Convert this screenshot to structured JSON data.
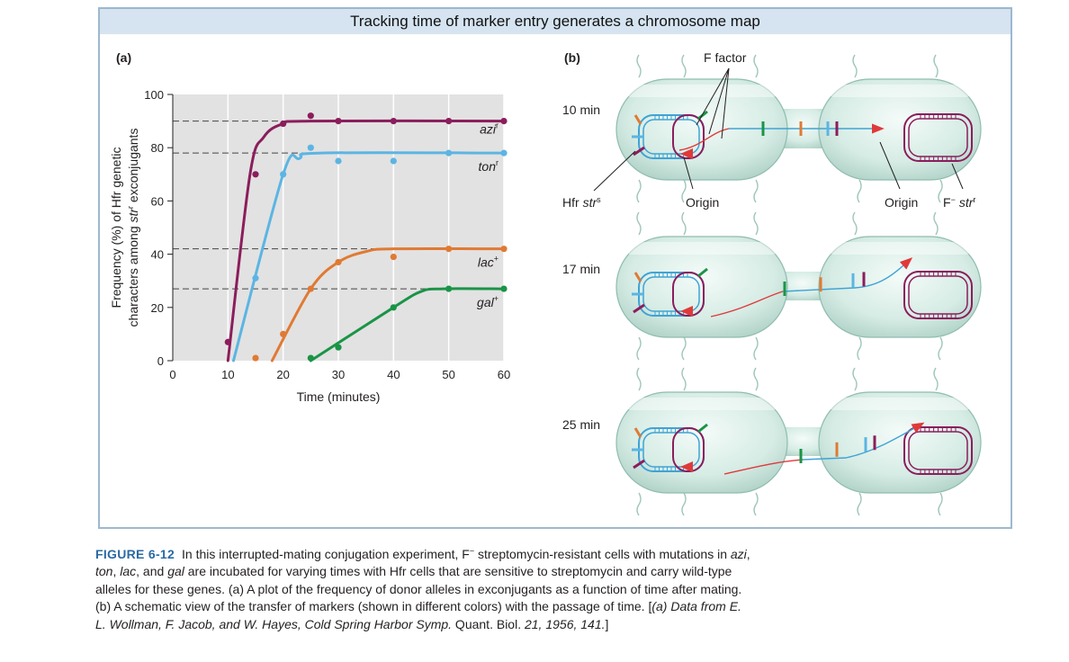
{
  "figure": {
    "title": "Tracking time of marker entry generates a chromosome map",
    "panel_a_label": "(a)",
    "panel_b_label": "(b)"
  },
  "chart_data": {
    "type": "line",
    "xlabel": "Time (minutes)",
    "ylabel_line1": "Frequency (%) of Hfr genetic",
    "ylabel_line2_pre": "characters among ",
    "ylabel_line2_gene": "str",
    "ylabel_line2_sup": "r",
    "ylabel_line2_post": " exconjugants",
    "xlim": [
      0,
      60
    ],
    "ylim": [
      0,
      100
    ],
    "x_ticks": [
      0,
      10,
      20,
      30,
      40,
      50,
      60
    ],
    "y_ticks": [
      0,
      20,
      40,
      60,
      80,
      100
    ],
    "grid": true,
    "series": [
      {
        "name": "azi",
        "sup": "r",
        "color": "#8b1d5c",
        "plateau": 90,
        "points": [
          [
            10,
            7
          ],
          [
            15,
            70
          ],
          [
            20,
            89
          ],
          [
            25,
            92
          ],
          [
            30,
            90
          ],
          [
            40,
            90
          ],
          [
            50,
            90
          ],
          [
            60,
            90
          ]
        ],
        "curve": [
          [
            10,
            0
          ],
          [
            14,
            70
          ],
          [
            16.5,
            84
          ],
          [
            20,
            89
          ],
          [
            25,
            90
          ],
          [
            60,
            90
          ]
        ]
      },
      {
        "name": "ton",
        "sup": "r",
        "color": "#5bb5e3",
        "plateau": 78,
        "points": [
          [
            15,
            31
          ],
          [
            20,
            70
          ],
          [
            25,
            80
          ],
          [
            30,
            75
          ],
          [
            40,
            75
          ],
          [
            50,
            78
          ],
          [
            60,
            78
          ]
        ],
        "curve": [
          [
            11,
            0
          ],
          [
            20,
            70
          ],
          [
            23,
            76
          ],
          [
            27,
            78
          ],
          [
            60,
            78
          ]
        ]
      },
      {
        "name": "lac",
        "sup": "+",
        "color": "#e07a33",
        "plateau": 42,
        "points": [
          [
            15,
            1
          ],
          [
            20,
            10
          ],
          [
            25,
            27
          ],
          [
            30,
            37
          ],
          [
            40,
            39
          ],
          [
            50,
            42
          ],
          [
            60,
            42
          ]
        ],
        "curve": [
          [
            18,
            0
          ],
          [
            25,
            27
          ],
          [
            30,
            37
          ],
          [
            35,
            41
          ],
          [
            40,
            42
          ],
          [
            60,
            42
          ]
        ]
      },
      {
        "name": "gal",
        "sup": "+",
        "color": "#1a9447",
        "plateau": 27,
        "points": [
          [
            25,
            1
          ],
          [
            30,
            5
          ],
          [
            40,
            20
          ],
          [
            50,
            27
          ],
          [
            60,
            27
          ]
        ],
        "curve": [
          [
            25,
            0
          ],
          [
            40,
            20
          ],
          [
            45,
            26
          ],
          [
            49,
            27
          ],
          [
            60,
            27
          ]
        ]
      }
    ]
  },
  "schematic": {
    "f_factor_label": "F factor",
    "hfr_label": "Hfr ",
    "hfr_gene": "str",
    "hfr_sup": "s",
    "origin_label_left": "Origin",
    "origin_label_right": "Origin",
    "fminus_label": "F",
    "fminus_sup": "−",
    "fminus_gene": "str",
    "fminus_gene_sup": "r",
    "time_labels": [
      "10 min",
      "17 min",
      "25 min"
    ]
  },
  "caption": {
    "figure_number": "FIGURE 6-12",
    "text": [
      {
        "t": " In this interrupted-mating conjugation experiment, F"
      },
      {
        "t": "−",
        "sup": true
      },
      {
        "t": " streptomycin-resistant cells with mutations in "
      },
      {
        "t": "azi",
        "i": true
      },
      {
        "t": ", "
      },
      {
        "t": "ton",
        "i": true
      },
      {
        "t": ", "
      },
      {
        "t": "lac",
        "i": true
      },
      {
        "t": ", and "
      },
      {
        "t": "gal",
        "i": true
      },
      {
        "t": " are incubated for varying times with Hfr cells that are sensitive to streptomycin and carry wild-type alleles for these genes. (a) A plot of the frequency of donor alleles in exconjugants as a function of time after mating. (b) A schematic view of the transfer of markers (shown in different colors) with the passage of time. ["
      },
      {
        "t": "(a) Data from E. L. Wollman, F. Jacob, and W. Hayes, Cold Spring Harbor Symp.",
        "i": true
      },
      {
        "t": " Quant. Biol. "
      },
      {
        "t": "21, 1956, 141.",
        "i": true
      },
      {
        "t": "]"
      }
    ]
  }
}
